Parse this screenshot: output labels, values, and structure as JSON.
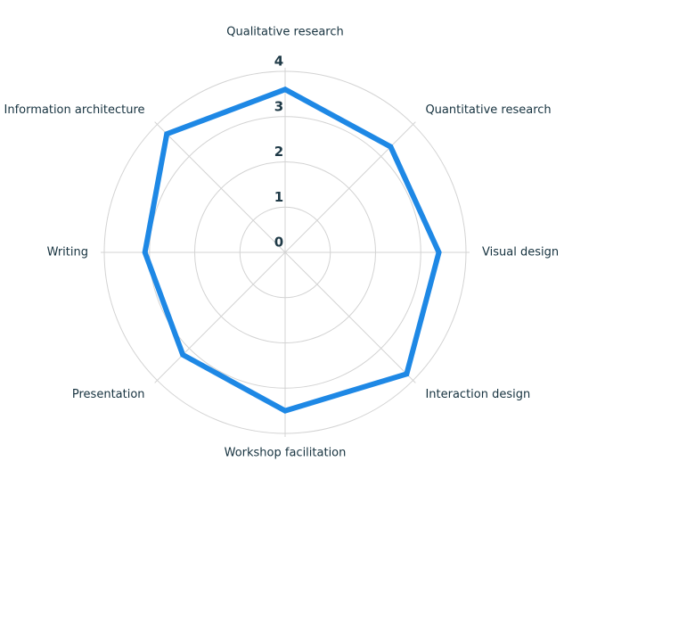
{
  "chart_data": {
    "type": "radar",
    "categories": [
      "Qualitative research",
      "Quantitative research",
      "Visual design",
      "Interaction design",
      "Workshop facilitation",
      "Presentation",
      "Writing",
      "Information architecture"
    ],
    "series": [
      {
        "color": "#1e88e5",
        "values": [
          3.6,
          3.3,
          3.4,
          3.8,
          3.5,
          3.2,
          3.1,
          3.7
        ]
      }
    ],
    "ylim": [
      0,
      4
    ],
    "yticks": [
      0,
      1,
      2,
      3,
      4
    ],
    "grid": true
  }
}
